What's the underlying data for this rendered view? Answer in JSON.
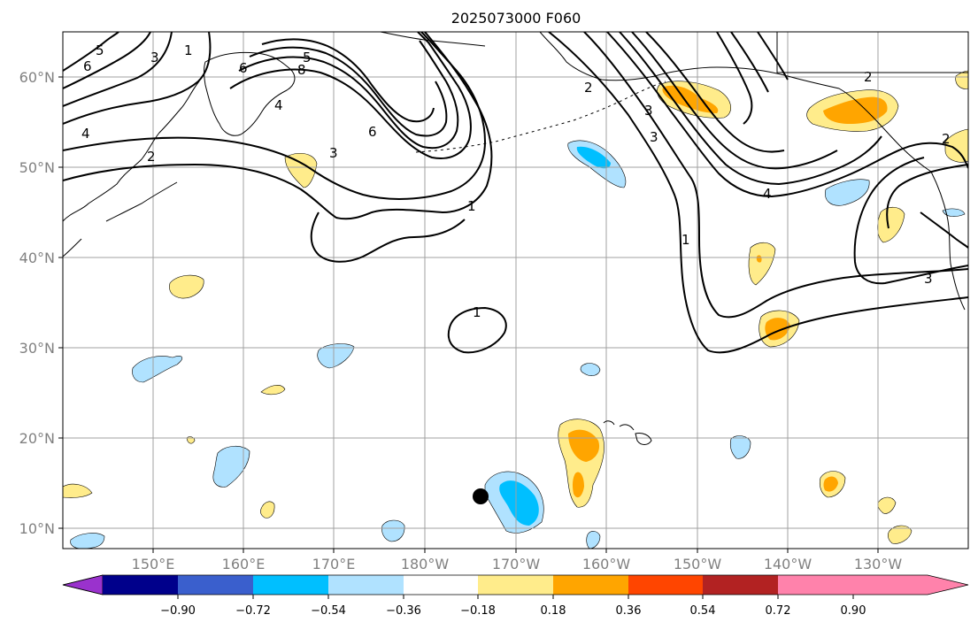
{
  "title": "2025073000 F060",
  "lat_labels": [
    "60°N",
    "50°N",
    "40°N",
    "30°N",
    "20°N",
    "10°N"
  ],
  "lon_labels": [
    "150°E",
    "160°E",
    "170°E",
    "180°W",
    "170°W",
    "160°W",
    "150°W",
    "140°W",
    "130°W"
  ],
  "colorbar": {
    "tick_labels": [
      "−0.90",
      "−0.72",
      "−0.54",
      "−0.36",
      "−0.18",
      "0.18",
      "0.36",
      "0.54",
      "0.72",
      "0.90"
    ],
    "colors": [
      "#9a32cd",
      "#00008b",
      "#3a5fcd",
      "#00bfff",
      "#b0e2ff",
      "#ffffff",
      "#ffec8b",
      "#ffa500",
      "#ff4500",
      "#b22222",
      "#ff82ab"
    ]
  },
  "contour_labels": [
    "5",
    "6",
    "3",
    "1",
    "4",
    "5",
    "6",
    "8",
    "4",
    "6",
    "2",
    "1",
    "3",
    "1",
    "1",
    "3",
    "2",
    "4",
    "2",
    "3",
    "3",
    "2"
  ],
  "marker": "storm-center-dot"
}
